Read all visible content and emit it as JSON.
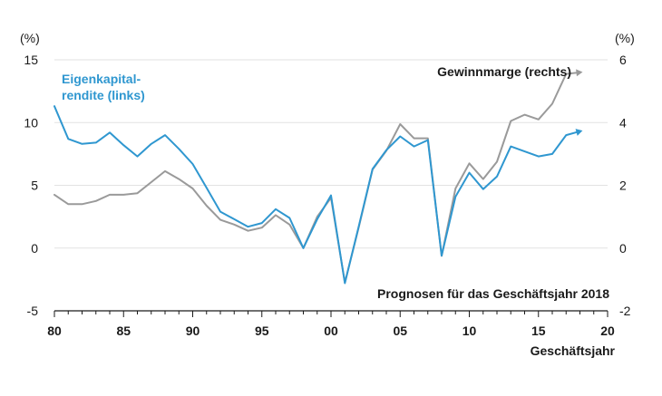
{
  "chart_data": {
    "type": "line",
    "title": "",
    "xlabel": "Geschäftsjahr",
    "left_unit": "(%)",
    "right_unit": "(%)",
    "x_tick_labels": [
      "80",
      "85",
      "90",
      "95",
      "00",
      "05",
      "10",
      "15",
      "20"
    ],
    "x_tick_years": [
      1980,
      1985,
      1990,
      1995,
      2000,
      2005,
      2010,
      2015,
      2020
    ],
    "xlim": [
      1980,
      2020
    ],
    "y_left_ticks": [
      15,
      10,
      5,
      0,
      -5
    ],
    "y_left_lim": [
      -5,
      15
    ],
    "y_right_ticks": [
      6,
      4,
      2,
      0,
      -2
    ],
    "y_right_lim": [
      -2,
      6
    ],
    "grid": true,
    "annotation_forecast": "Prognosen für das Geschäftsjahr 2018",
    "series": [
      {
        "name": "Eigenkapitalrendite (links)",
        "label_lines": [
          "Eigenkapital-",
          "rendite (links)"
        ],
        "axis": "left",
        "color": "#2f97d0",
        "x": [
          1980,
          1981,
          1982,
          1983,
          1984,
          1985,
          1986,
          1987,
          1988,
          1989,
          1990,
          1991,
          1992,
          1993,
          1994,
          1995,
          1996,
          1997,
          1998,
          1999,
          2000,
          2001,
          2002,
          2003,
          2004,
          2005,
          2006,
          2007,
          2008,
          2009,
          2010,
          2011,
          2012,
          2013,
          2014,
          2015,
          2016,
          2017,
          2018
        ],
        "values": [
          11.3,
          8.7,
          8.3,
          8.4,
          9.2,
          8.2,
          7.3,
          8.3,
          9.0,
          7.9,
          6.7,
          4.8,
          2.9,
          2.3,
          1.7,
          2.0,
          3.1,
          2.4,
          0.0,
          2.3,
          4.2,
          -2.8,
          1.7,
          6.3,
          7.8,
          8.9,
          8.1,
          8.6,
          -0.6,
          4.1,
          6.0,
          4.7,
          5.7,
          8.1,
          7.7,
          7.3,
          7.5,
          9.0,
          9.3
        ]
      },
      {
        "name": "Gewinnmarge (rechts)",
        "label_lines": [
          "Gewinnmarge (rechts)"
        ],
        "axis": "right",
        "color": "#9a9a9a",
        "x": [
          1980,
          1981,
          1982,
          1983,
          1984,
          1985,
          1986,
          1987,
          1988,
          1989,
          1990,
          1991,
          1992,
          1993,
          1994,
          1995,
          1996,
          1997,
          1998,
          1999,
          2000,
          2001,
          2002,
          2003,
          2004,
          2005,
          2006,
          2007,
          2008,
          2009,
          2010,
          2011,
          2012,
          2013,
          2014,
          2015,
          2016,
          2017,
          2018
        ],
        "values": [
          1.7,
          1.4,
          1.4,
          1.5,
          1.7,
          1.7,
          1.75,
          2.1,
          2.45,
          2.2,
          1.9,
          1.35,
          0.9,
          0.75,
          0.55,
          0.65,
          1.05,
          0.75,
          0.0,
          1.0,
          1.6,
          -1.1,
          0.65,
          2.5,
          3.1,
          3.95,
          3.5,
          3.5,
          -0.25,
          1.9,
          2.7,
          2.2,
          2.75,
          4.05,
          4.25,
          4.1,
          4.6,
          5.55,
          5.6
        ]
      }
    ]
  }
}
